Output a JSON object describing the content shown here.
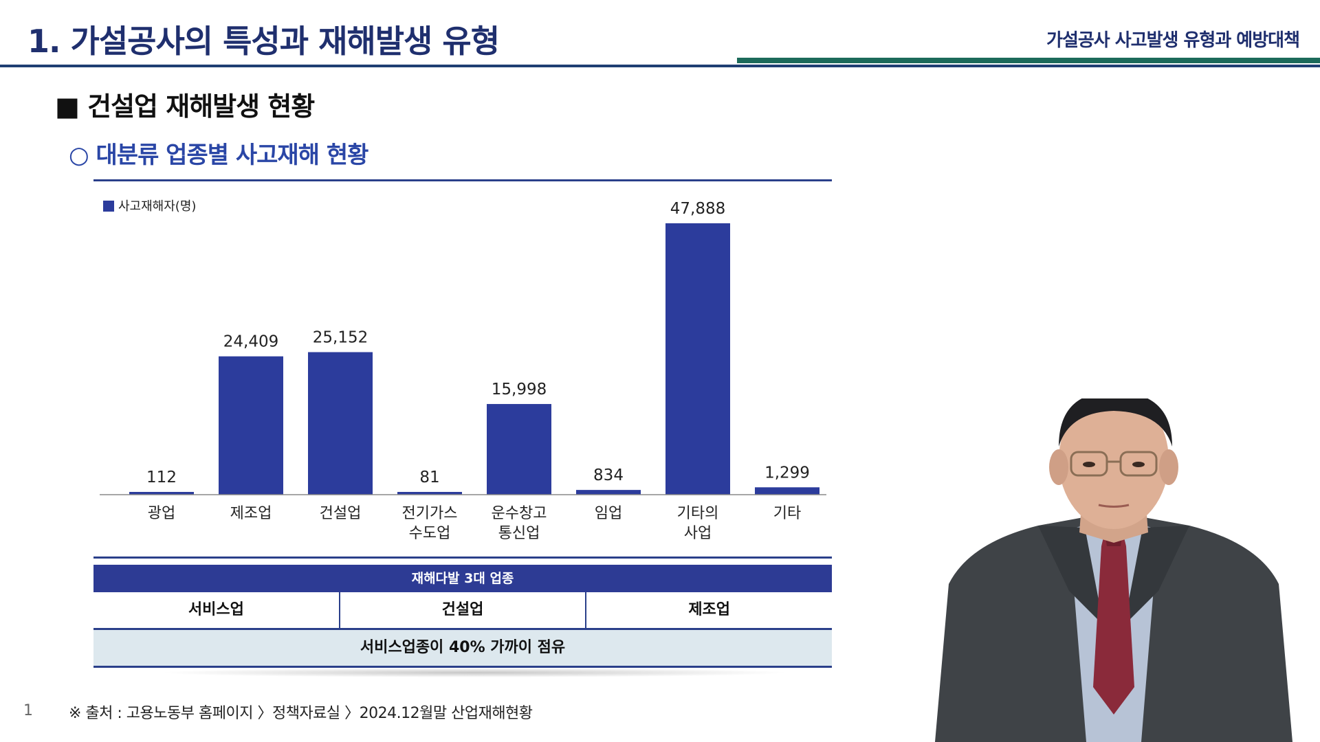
{
  "header": {
    "title": "1. 가설공사의 특성과 재해발생 유형",
    "subtitle": "가설공사 사고발생 유형과 예방대책"
  },
  "section": {
    "heading": "■ 건설업 재해발생 현황",
    "subheading": "○ 대분류 업종별 사고재해 현황"
  },
  "chart_data": {
    "type": "bar",
    "categories": [
      [
        "광업"
      ],
      [
        "제조업"
      ],
      [
        "건설업"
      ],
      [
        "전기가스",
        "수도업"
      ],
      [
        "운수창고",
        "통신업"
      ],
      [
        "임업"
      ],
      [
        "기타의",
        "사업"
      ],
      [
        "기타"
      ]
    ],
    "series": [
      {
        "name": "사고재해자(명)",
        "values": [
          112,
          24409,
          25152,
          81,
          15998,
          834,
          47888,
          1299
        ],
        "labels": [
          "112",
          "24,409",
          "25,152",
          "81",
          "15,998",
          "834",
          "47,888",
          "1,299"
        ]
      }
    ],
    "ylim": [
      0,
      47888
    ],
    "bar_color": "#2c3c9c",
    "legend": "top-left",
    "grid": false
  },
  "summary": {
    "header": "재해다발 3대 업종",
    "cells": [
      "서비스업",
      "건설업",
      "제조업"
    ],
    "note": "서비스업종이 40% 가까이 점유"
  },
  "footer": {
    "page": "1",
    "source": "※ 출처 : 고용노동부 홈페이지 〉정책자료실 〉2024.12월말 산업재해현황"
  },
  "colors": {
    "title": "#1f2f6e",
    "accent_blue": "#2a46a6",
    "rule_navy": "#1f3f73",
    "rule_green": "#1c6a5a",
    "summary_header": "#2d3b94",
    "summary_note_bg": "#dde8ee"
  }
}
